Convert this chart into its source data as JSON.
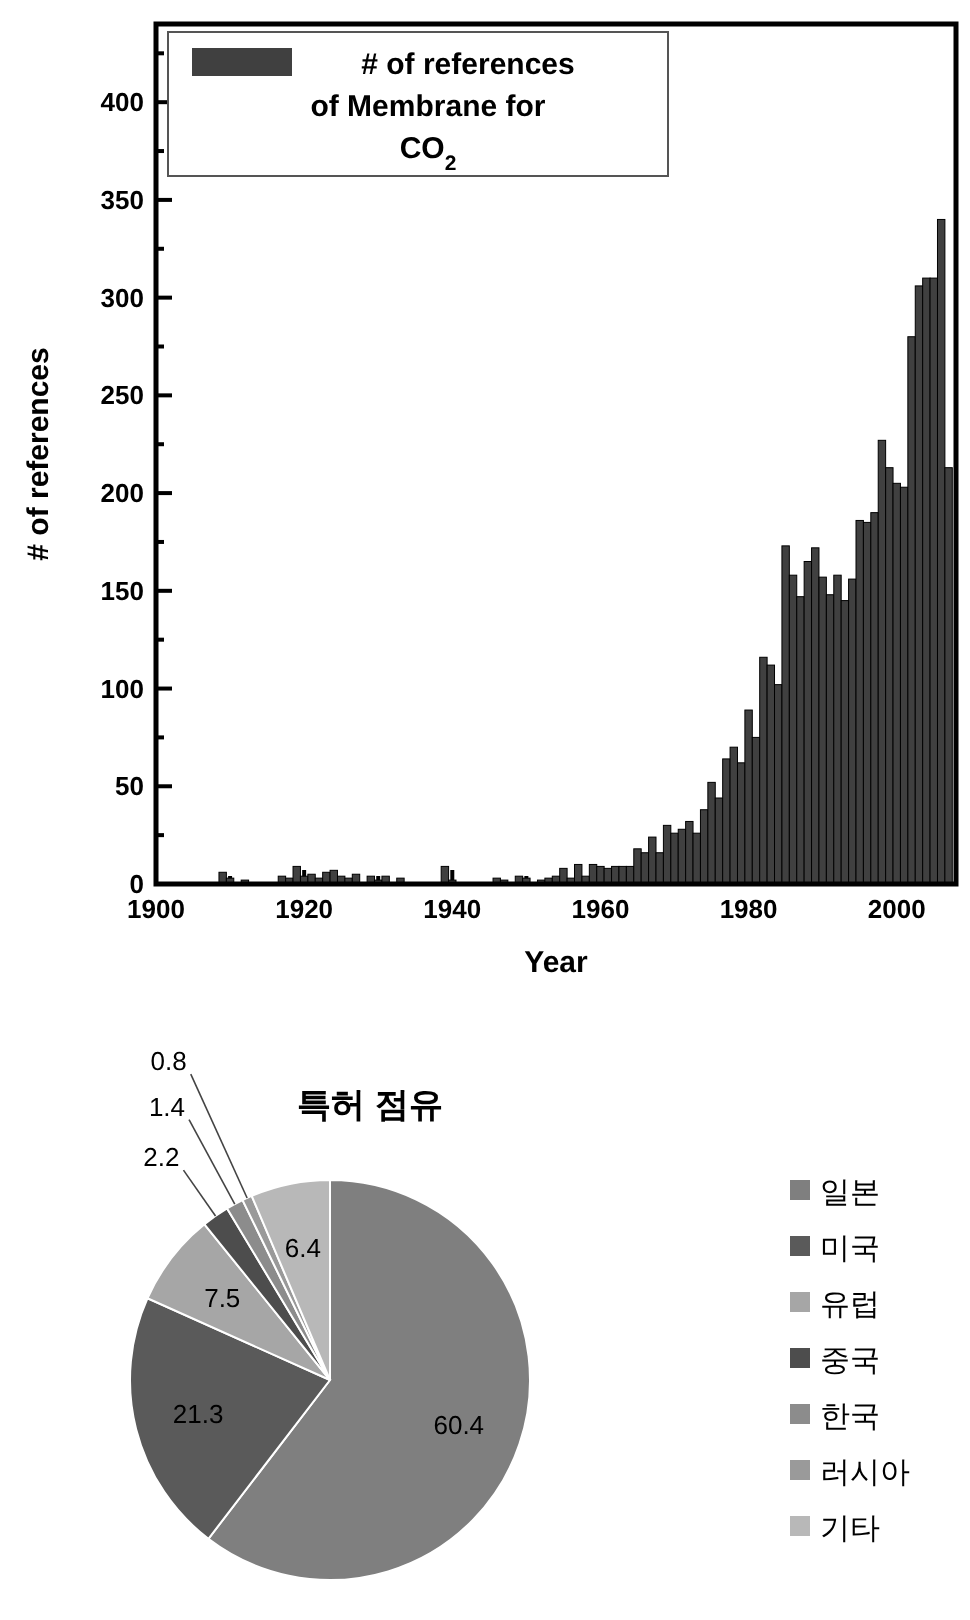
{
  "chart_data": [
    {
      "type": "bar",
      "xlabel": "Year",
      "ylabel": "# of references",
      "series": [
        {
          "name": "# of references of Membrane for CO$_{2}$",
          "color": "#404040",
          "x": [
            1909,
            1910,
            1912,
            1917,
            1918,
            1919,
            1920,
            1921,
            1922,
            1923,
            1924,
            1925,
            1926,
            1927,
            1929,
            1930,
            1931,
            1933,
            1939,
            1940,
            1946,
            1947,
            1949,
            1950,
            1952,
            1953,
            1954,
            1955,
            1956,
            1957,
            1958,
            1959,
            1960,
            1961,
            1962,
            1963,
            1964,
            1965,
            1966,
            1967,
            1968,
            1969,
            1970,
            1971,
            1972,
            1973,
            1974,
            1975,
            1976,
            1977,
            1978,
            1979,
            1980,
            1981,
            1982,
            1983,
            1984,
            1985,
            1986,
            1987,
            1988,
            1989,
            1990,
            1991,
            1992,
            1993,
            1994,
            1995,
            1996,
            1997,
            1998,
            1999,
            2000,
            2001,
            2002,
            2003,
            2004,
            2005,
            2006,
            2007
          ],
          "values": [
            6,
            3,
            2,
            4,
            3,
            9,
            4,
            5,
            3,
            6,
            7,
            4,
            3,
            5,
            4,
            2,
            4,
            3,
            9,
            2,
            3,
            2,
            4,
            3,
            2,
            3,
            4,
            8,
            3,
            10,
            4,
            10,
            9,
            8,
            9,
            9,
            9,
            18,
            16,
            24,
            16,
            30,
            26,
            28,
            32,
            26,
            38,
            52,
            44,
            64,
            70,
            62,
            89,
            75,
            116,
            112,
            102,
            173,
            158,
            147,
            165,
            172,
            157,
            148,
            158,
            145,
            156,
            186,
            185,
            190,
            227,
            213,
            205,
            203,
            280,
            306,
            310,
            310,
            340,
            213
          ]
        }
      ],
      "xlim": [
        1900,
        2008
      ],
      "ylim": [
        0,
        440
      ],
      "xticks": [
        1900,
        {
          "value": 1910,
          "label": null
        },
        1920,
        {
          "value": 1930,
          "label": null
        },
        1940,
        {
          "value": 1950,
          "label": null
        },
        1960,
        {
          "value": 1970,
          "label": null
        },
        1980,
        {
          "value": 1990,
          "label": null
        },
        2000
      ],
      "yticks": [
        0,
        {
          "value": 25,
          "label": null
        },
        50,
        {
          "value": 75,
          "label": null
        },
        100,
        {
          "value": 125,
          "label": null
        },
        150,
        {
          "value": 175,
          "label": null
        },
        200,
        {
          "value": 225,
          "label": null
        },
        250,
        {
          "value": 275,
          "label": null
        },
        300,
        {
          "value": 325,
          "label": null
        },
        350,
        {
          "value": 375,
          "label": null
        },
        400,
        {
          "value": 425,
          "label": null
        }
      ],
      "legend": "top left"
    },
    {
      "type": "pie",
      "title": "특허 점유",
      "categories": [
        "일본",
        "미국",
        "유럽",
        "중국",
        "한국",
        "러시아",
        "기타"
      ],
      "values": [
        60.4,
        21.3,
        7.5,
        2.2,
        1.4,
        0.8,
        6.4
      ],
      "colors": [
        "#7f7f7f",
        "#5a5a5a",
        "#a6a6a6",
        "#4d4d4d",
        "#8c8c8c",
        "#9a9a9a",
        "#b8b8b8"
      ],
      "data_labels": true,
      "legend": "right"
    }
  ]
}
